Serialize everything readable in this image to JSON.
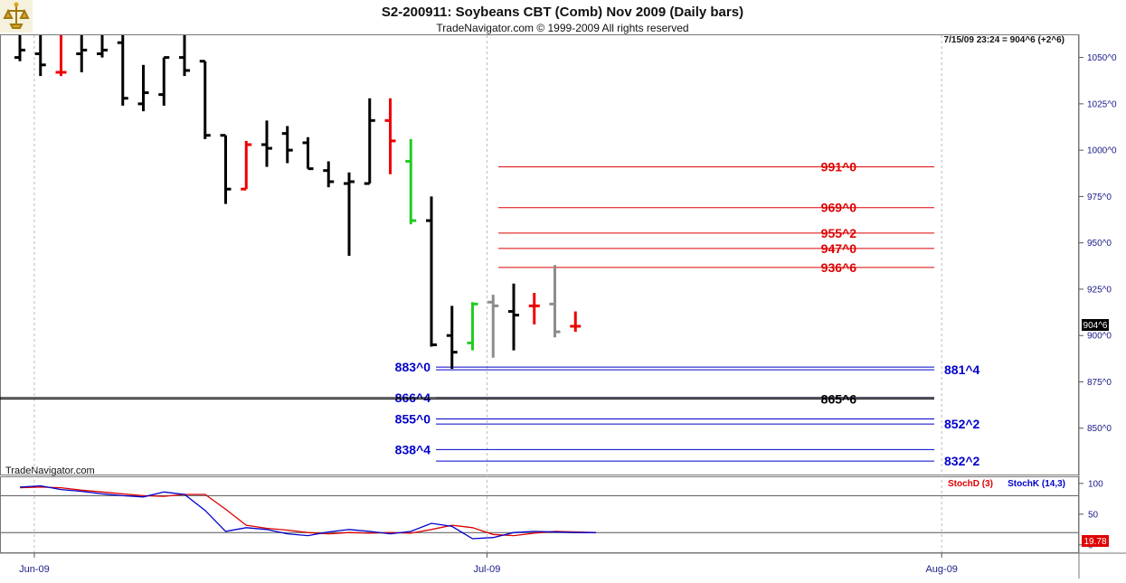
{
  "header": {
    "title": "S2-200911:  Soybeans CBT (Comb) Nov 2009  (Daily bars)",
    "copyright": "TradeNavigator.com © 1999-2009 All rights reserved",
    "logo_icon": "trade-navigator-logo-icon"
  },
  "colors": {
    "up": "#000000",
    "down_red": "#ee0000",
    "green": "#22cc22",
    "gray": "#8c8c8c",
    "resistance": "#dd0000",
    "support": "#0000cc",
    "stochD": "#dd0000",
    "stochK": "#0000cc",
    "axis_text": "#1a1a88"
  },
  "chart_data": [
    {
      "type": "ohlc",
      "title": "S2-200911:  Soybeans CBT (Comb) Nov 2009  (Daily bars)",
      "info_line": "7/15/09 23:24 = 904^6 (+2^6)",
      "watermark": "TradeNavigator.com",
      "last_price_label": "904^6",
      "ylim": [
        825,
        1062
      ],
      "yticks": [
        850,
        875,
        900,
        925,
        950,
        975,
        1000,
        1025,
        1050
      ],
      "ytick_labels": [
        "850^0",
        "875^0",
        "900^0",
        "925^0",
        "950^0",
        "975^0",
        "1000^0",
        "1025^0",
        "1050^0"
      ],
      "xticks": [
        {
          "label": "Jun-09",
          "bar": 0.7
        },
        {
          "label": "Jul-09",
          "bar": 22.7
        },
        {
          "label": "Aug-09",
          "bar": 44.8
        }
      ],
      "bars": [
        {
          "o": 1050,
          "h": 1062,
          "l": 1048,
          "c": 1054,
          "color": "black"
        },
        {
          "o": 1052,
          "h": 1062,
          "l": 1040,
          "c": 1046,
          "color": "black"
        },
        {
          "o": 1042,
          "h": 1062,
          "l": 1040,
          "c": 1042,
          "color": "red"
        },
        {
          "o": 1052,
          "h": 1062,
          "l": 1042,
          "c": 1054,
          "color": "black"
        },
        {
          "o": 1052,
          "h": 1062,
          "l": 1050,
          "c": 1054,
          "color": "black"
        },
        {
          "o": 1058,
          "h": 1062,
          "l": 1024,
          "c": 1028,
          "color": "black"
        },
        {
          "o": 1025,
          "h": 1046,
          "l": 1021,
          "c": 1031,
          "color": "black"
        },
        {
          "o": 1030,
          "h": 1050,
          "l": 1024,
          "c": 1050,
          "color": "black"
        },
        {
          "o": 1050,
          "h": 1062,
          "l": 1040,
          "c": 1043,
          "color": "black"
        },
        {
          "o": 1048,
          "h": 1048,
          "l": 1006,
          "c": 1008,
          "color": "black"
        },
        {
          "o": 1008,
          "h": 1008,
          "l": 971,
          "c": 979,
          "color": "black"
        },
        {
          "o": 979,
          "h": 1005,
          "l": 979,
          "c": 1003,
          "color": "red"
        },
        {
          "o": 1003,
          "h": 1016,
          "l": 991,
          "c": 1001,
          "color": "black"
        },
        {
          "o": 1009,
          "h": 1013,
          "l": 993,
          "c": 1000,
          "color": "black"
        },
        {
          "o": 1004,
          "h": 1007,
          "l": 990,
          "c": 990,
          "color": "black"
        },
        {
          "o": 989,
          "h": 994,
          "l": 980,
          "c": 983,
          "color": "black"
        },
        {
          "o": 982,
          "h": 988,
          "l": 943,
          "c": 983,
          "color": "black"
        },
        {
          "o": 982,
          "h": 1028,
          "l": 982,
          "c": 1016,
          "color": "black"
        },
        {
          "o": 1016,
          "h": 1028,
          "l": 987,
          "c": 1005,
          "color": "red"
        },
        {
          "o": 994,
          "h": 1006,
          "l": 960,
          "c": 962,
          "color": "green"
        },
        {
          "o": 962,
          "h": 975,
          "l": 894,
          "c": 895,
          "color": "black"
        },
        {
          "o": 900,
          "h": 916,
          "l": 882,
          "c": 891,
          "color": "black"
        },
        {
          "o": 896,
          "h": 918,
          "l": 892,
          "c": 917,
          "color": "green"
        },
        {
          "o": 918,
          "h": 922,
          "l": 888,
          "c": 916,
          "color": "gray"
        },
        {
          "o": 913,
          "h": 928,
          "l": 892,
          "c": 911,
          "color": "black"
        },
        {
          "o": 916,
          "h": 923,
          "l": 906,
          "c": 916,
          "color": "red"
        },
        {
          "o": 917,
          "h": 938,
          "l": 899,
          "c": 902,
          "color": "gray"
        },
        {
          "o": 905,
          "h": 913,
          "l": 902,
          "c": 905,
          "color": "red"
        }
      ],
      "levels": [
        {
          "value": 991.0,
          "label": "991^0",
          "color": "red",
          "side": "right"
        },
        {
          "value": 969.0,
          "label": "969^0",
          "color": "red",
          "side": "right"
        },
        {
          "value": 955.25,
          "label": "955^2",
          "color": "red",
          "side": "right"
        },
        {
          "value": 947.0,
          "label": "947^0",
          "color": "red",
          "side": "right"
        },
        {
          "value": 936.75,
          "label": "936^6",
          "color": "red",
          "side": "right"
        },
        {
          "value": 883.0,
          "label": "883^0",
          "color": "blue",
          "side": "left"
        },
        {
          "value": 881.5,
          "label": "881^4",
          "color": "blue",
          "side": "far"
        },
        {
          "value": 866.5,
          "label": "866^4",
          "color": "blue",
          "side": "left"
        },
        {
          "value": 865.75,
          "label": "865^6",
          "color": "black",
          "side": "right"
        },
        {
          "value": 855.0,
          "label": "855^0",
          "color": "blue",
          "side": "left"
        },
        {
          "value": 852.25,
          "label": "852^2",
          "color": "blue",
          "side": "far"
        },
        {
          "value": 838.5,
          "label": "838^4",
          "color": "blue",
          "side": "left"
        },
        {
          "value": 832.25,
          "label": "832^2",
          "color": "blue",
          "side": "far"
        }
      ]
    },
    {
      "type": "line",
      "title": "",
      "ylim": [
        -12,
        110
      ],
      "yticks": [
        0,
        50,
        100
      ],
      "ytick_labels": [
        "0",
        "50",
        "100"
      ],
      "hlines": [
        80,
        20
      ],
      "last_value_label": "19.78",
      "series": [
        {
          "name": "StochD (3)",
          "color": "#dd0000",
          "x": [
            0,
            1,
            2,
            3,
            4,
            5,
            6,
            7,
            8,
            9,
            10,
            11,
            12,
            13,
            14,
            15,
            16,
            17,
            18,
            19,
            20,
            21,
            22,
            23,
            24,
            25,
            26,
            27,
            28
          ],
          "values": [
            93,
            94,
            93,
            89,
            86,
            83,
            80,
            79,
            82,
            82,
            58,
            32,
            27,
            24,
            20,
            18,
            20,
            19,
            20,
            19,
            25,
            32,
            28,
            17,
            15,
            19,
            22,
            21,
            20
          ]
        },
        {
          "name": "StochK (14,3)",
          "color": "#0000cc",
          "x": [
            0,
            1,
            2,
            3,
            4,
            5,
            6,
            7,
            8,
            9,
            10,
            11,
            12,
            13,
            14,
            15,
            16,
            17,
            18,
            19,
            20,
            21,
            22,
            23,
            24,
            25,
            26,
            27,
            28
          ],
          "values": [
            94,
            96,
            90,
            87,
            83,
            80,
            78,
            86,
            82,
            56,
            22,
            28,
            25,
            18,
            15,
            21,
            25,
            22,
            18,
            22,
            35,
            30,
            10,
            12,
            20,
            22,
            21,
            20,
            20
          ]
        }
      ]
    }
  ]
}
